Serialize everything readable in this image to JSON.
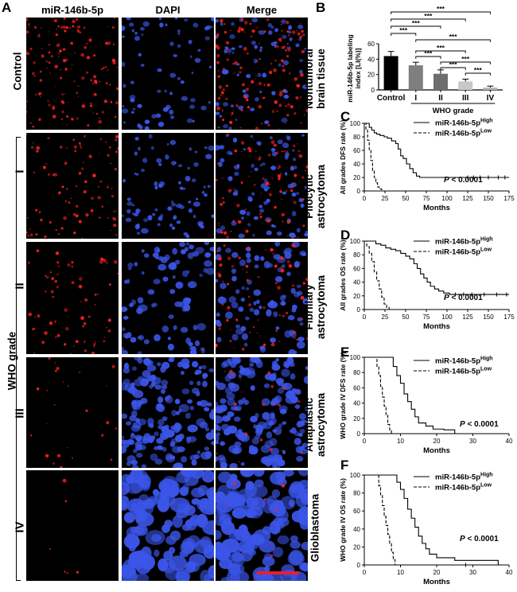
{
  "panel_letters": {
    "A": "A",
    "B": "B",
    "C": "C",
    "D": "D",
    "E": "E",
    "F": "F"
  },
  "panel_a": {
    "columns": [
      "miR-146b-5p",
      "DAPI",
      "Merge"
    ],
    "control_label": "Control",
    "who_grade_label": "WHO grade",
    "grade_labels": [
      "I",
      "II",
      "III",
      "IV"
    ],
    "row_tissue_labels": [
      [
        "Nontumoral",
        "brain tissue"
      ],
      [
        "Pilocytic",
        "astrocytoma"
      ],
      [
        "Fibrillary",
        "astrocytoma"
      ],
      [
        "Anaplastic",
        "astrocytoma"
      ],
      [
        "Glioblastoma"
      ]
    ],
    "colors": {
      "red": "#ff2020",
      "blue": "#3b55e8",
      "scale_bar": "#e8202a"
    }
  },
  "chart_data": [
    {
      "panel": "B",
      "type": "bar",
      "categories": [
        "Control",
        "I",
        "II",
        "III",
        "IV"
      ],
      "values": [
        44,
        32,
        21,
        11,
        3
      ],
      "errors": [
        6,
        4,
        5,
        3,
        2
      ],
      "colors": [
        "#000000",
        "#7f7f7f",
        "#6e6e6e",
        "#c8c8c8",
        "#b5b5b5"
      ],
      "ylabel": "miR-146b-5p labeling index [LI(%)]",
      "xlabel": "WHO grade",
      "ylim": [
        0,
        60
      ],
      "yticks": [
        0,
        20,
        40,
        60
      ],
      "significance": [
        {
          "from": "Control",
          "to": "I",
          "label": "***"
        },
        {
          "from": "Control",
          "to": "II",
          "label": "***"
        },
        {
          "from": "Control",
          "to": "III",
          "label": "***"
        },
        {
          "from": "Control",
          "to": "IV",
          "label": "***"
        },
        {
          "from": "I",
          "to": "II",
          "label": "***"
        },
        {
          "from": "I",
          "to": "III",
          "label": "***"
        },
        {
          "from": "I",
          "to": "IV",
          "label": "***"
        },
        {
          "from": "II",
          "to": "III",
          "label": "***"
        },
        {
          "from": "II",
          "to": "IV",
          "label": "***"
        },
        {
          "from": "III",
          "to": "IV",
          "label": "***"
        }
      ]
    },
    {
      "panel": "C",
      "type": "line",
      "ylabel": "All grades DFS rate (%)",
      "xlabel": "Months",
      "xlim": [
        0,
        175
      ],
      "ylim": [
        0,
        100
      ],
      "xticks": [
        0,
        25,
        50,
        75,
        100,
        125,
        150,
        175
      ],
      "yticks": [
        0,
        20,
        40,
        60,
        80,
        100
      ],
      "pvalue": "< 0.0001",
      "series": [
        {
          "name": "miR-146b-5pHigh",
          "base": "miR-146b-5p",
          "sup": "High",
          "style": "solid",
          "points": [
            [
              0,
              100
            ],
            [
              4,
              100
            ],
            [
              6,
              94
            ],
            [
              9,
              90
            ],
            [
              12,
              86
            ],
            [
              15,
              84
            ],
            [
              19,
              82
            ],
            [
              24,
              80
            ],
            [
              28,
              78
            ],
            [
              33,
              74
            ],
            [
              38,
              70
            ],
            [
              41,
              62
            ],
            [
              44,
              52
            ],
            [
              47,
              48
            ],
            [
              51,
              40
            ],
            [
              55,
              33
            ],
            [
              59,
              27
            ],
            [
              63,
              22
            ],
            [
              67,
              20
            ],
            [
              175,
              20
            ]
          ],
          "censor": [
            125,
            132,
            140,
            150,
            162,
            170
          ]
        },
        {
          "name": "miR-146b-5pLow",
          "base": "miR-146b-5p",
          "sup": "Low",
          "style": "dashed",
          "points": [
            [
              0,
              100
            ],
            [
              2,
              90
            ],
            [
              4,
              75
            ],
            [
              6,
              60
            ],
            [
              8,
              45
            ],
            [
              10,
              30
            ],
            [
              12,
              20
            ],
            [
              14,
              12
            ],
            [
              16,
              6
            ],
            [
              18,
              3
            ],
            [
              21,
              0
            ],
            [
              25,
              0
            ]
          ],
          "censor": []
        }
      ]
    },
    {
      "panel": "D",
      "type": "line",
      "ylabel": "All grades OS rate (%)",
      "xlabel": "Months",
      "xlim": [
        0,
        175
      ],
      "ylim": [
        0,
        100
      ],
      "xticks": [
        0,
        25,
        50,
        75,
        100,
        125,
        150,
        175
      ],
      "yticks": [
        0,
        20,
        40,
        60,
        80,
        100
      ],
      "pvalue": "< 0.0001",
      "series": [
        {
          "name": "miR-146b-5pHigh",
          "base": "miR-146b-5p",
          "sup": "High",
          "style": "solid",
          "points": [
            [
              0,
              100
            ],
            [
              10,
              100
            ],
            [
              14,
              96
            ],
            [
              20,
              94
            ],
            [
              26,
              90
            ],
            [
              32,
              88
            ],
            [
              38,
              86
            ],
            [
              44,
              82
            ],
            [
              50,
              78
            ],
            [
              55,
              74
            ],
            [
              60,
              67
            ],
            [
              64,
              60
            ],
            [
              68,
              52
            ],
            [
              72,
              46
            ],
            [
              76,
              40
            ],
            [
              80,
              34
            ],
            [
              85,
              30
            ],
            [
              90,
              27
            ],
            [
              96,
              24
            ],
            [
              103,
              22
            ],
            [
              175,
              22
            ]
          ],
          "censor": [
            110,
            120,
            130,
            145,
            160,
            172
          ]
        },
        {
          "name": "miR-146b-5pLow",
          "base": "miR-146b-5p",
          "sup": "Low",
          "style": "dashed",
          "points": [
            [
              0,
              100
            ],
            [
              3,
              92
            ],
            [
              6,
              82
            ],
            [
              9,
              70
            ],
            [
              12,
              55
            ],
            [
              15,
              42
            ],
            [
              18,
              30
            ],
            [
              21,
              18
            ],
            [
              24,
              8
            ],
            [
              27,
              3
            ],
            [
              30,
              0
            ],
            [
              34,
              0
            ]
          ],
          "censor": []
        }
      ]
    },
    {
      "panel": "E",
      "type": "line",
      "ylabel": "WHO grade IV DFS rate (%)",
      "xlabel": "Months",
      "xlim": [
        0,
        40
      ],
      "ylim": [
        0,
        100
      ],
      "xticks": [
        0,
        10,
        20,
        30,
        40
      ],
      "yticks": [
        0,
        20,
        40,
        60,
        80,
        100
      ],
      "pvalue": "< 0.0001",
      "series": [
        {
          "name": "miR-146b-5pHigh",
          "base": "miR-146b-5p",
          "sup": "High",
          "style": "solid",
          "points": [
            [
              0,
              100
            ],
            [
              7,
              100
            ],
            [
              8,
              88
            ],
            [
              9,
              76
            ],
            [
              10,
              66
            ],
            [
              11,
              52
            ],
            [
              12,
              42
            ],
            [
              13,
              32
            ],
            [
              14,
              22
            ],
            [
              15,
              14
            ],
            [
              17,
              10
            ],
            [
              19,
              6
            ],
            [
              22,
              5
            ],
            [
              25,
              0
            ]
          ],
          "censor": []
        },
        {
          "name": "miR-146b-5pLow",
          "base": "miR-146b-5p",
          "sup": "Low",
          "style": "dashed",
          "points": [
            [
              0,
              100
            ],
            [
              3,
              100
            ],
            [
              3.5,
              88
            ],
            [
              4,
              76
            ],
            [
              4.5,
              62
            ],
            [
              5,
              48
            ],
            [
              5.5,
              36
            ],
            [
              6,
              24
            ],
            [
              6.5,
              12
            ],
            [
              7,
              5
            ],
            [
              7.5,
              0
            ],
            [
              8,
              0
            ]
          ],
          "censor": []
        }
      ]
    },
    {
      "panel": "F",
      "type": "line",
      "ylabel": "WHO grade IV OS rate (%)",
      "xlabel": "Months",
      "xlim": [
        0,
        40
      ],
      "ylim": [
        0,
        100
      ],
      "xticks": [
        0,
        10,
        20,
        30,
        40
      ],
      "yticks": [
        0,
        20,
        40,
        60,
        80,
        100
      ],
      "pvalue": "< 0.0001",
      "series": [
        {
          "name": "miR-146b-5pHigh",
          "base": "miR-146b-5p",
          "sup": "High",
          "style": "solid",
          "points": [
            [
              0,
              100
            ],
            [
              8,
              100
            ],
            [
              9,
              92
            ],
            [
              10,
              84
            ],
            [
              11,
              74
            ],
            [
              12,
              62
            ],
            [
              13,
              52
            ],
            [
              14,
              42
            ],
            [
              15,
              32
            ],
            [
              16,
              24
            ],
            [
              17,
              18
            ],
            [
              18,
              12
            ],
            [
              20,
              8
            ],
            [
              25,
              5
            ],
            [
              35,
              5
            ],
            [
              37,
              0
            ]
          ],
          "censor": [
            28
          ]
        },
        {
          "name": "miR-146b-5pLow",
          "base": "miR-146b-5p",
          "sup": "Low",
          "style": "dashed",
          "points": [
            [
              0,
              100
            ],
            [
              3,
              100
            ],
            [
              4,
              88
            ],
            [
              4.5,
              78
            ],
            [
              5,
              66
            ],
            [
              5.5,
              54
            ],
            [
              6,
              44
            ],
            [
              6.5,
              34
            ],
            [
              7,
              24
            ],
            [
              7.5,
              14
            ],
            [
              8,
              6
            ],
            [
              8.5,
              0
            ],
            [
              9,
              0
            ]
          ],
          "censor": []
        }
      ]
    }
  ]
}
